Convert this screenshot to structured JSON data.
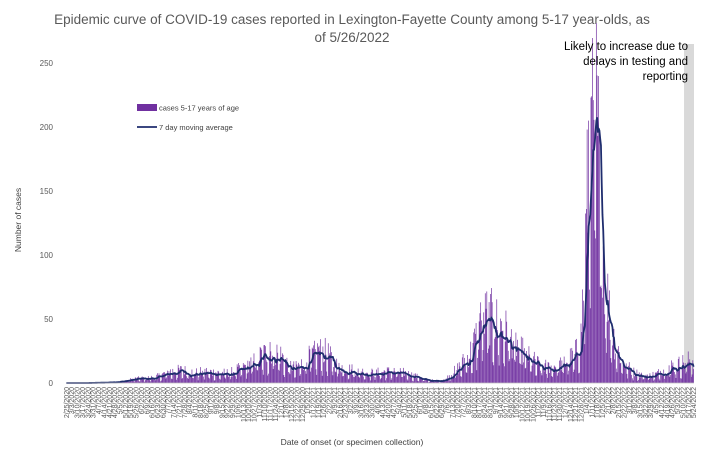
{
  "chart_data": {
    "type": "bar",
    "title_line1": "Epidemic curve of COVID-19 cases reported in Lexington-Fayette County among 5-17 year-olds, as",
    "title_line2": "of 5/26/2022",
    "xlabel": "Date of onset (or specimen collection)",
    "ylabel": "Number of cases",
    "ylim": [
      0,
      250
    ],
    "yticks": [
      0,
      50,
      100,
      150,
      200,
      250
    ],
    "grid": false,
    "legend_position": "upper-left",
    "x_start": "2/25/2020",
    "x_end": "5/24/2022",
    "x_tick_interval_days": 7,
    "series": [
      {
        "name": "cases 5-17 years of age",
        "kind": "bar",
        "color": "#7030A0",
        "shape_points": [
          [
            "2020-02-25",
            0
          ],
          [
            "2020-03-20",
            0
          ],
          [
            "2020-04-15",
            0.3
          ],
          [
            "2020-05-05",
            1
          ],
          [
            "2020-05-25",
            3
          ],
          [
            "2020-06-20",
            4
          ],
          [
            "2020-07-10",
            8
          ],
          [
            "2020-07-25",
            9
          ],
          [
            "2020-08-10",
            7
          ],
          [
            "2020-08-25",
            8
          ],
          [
            "2020-09-10",
            7
          ],
          [
            "2020-09-25",
            7
          ],
          [
            "2020-10-10",
            10
          ],
          [
            "2020-10-25",
            14
          ],
          [
            "2020-11-05",
            19
          ],
          [
            "2020-11-20",
            22
          ],
          [
            "2020-11-30",
            20
          ],
          [
            "2020-12-10",
            13
          ],
          [
            "2020-12-20",
            10
          ],
          [
            "2021-01-05",
            17
          ],
          [
            "2021-01-20",
            22
          ],
          [
            "2021-01-30",
            21
          ],
          [
            "2021-02-10",
            13
          ],
          [
            "2021-02-25",
            10
          ],
          [
            "2021-03-15",
            8
          ],
          [
            "2021-03-30",
            7
          ],
          [
            "2021-04-20",
            8
          ],
          [
            "2021-05-05",
            8
          ],
          [
            "2021-05-25",
            5
          ],
          [
            "2021-06-10",
            2
          ],
          [
            "2021-06-25",
            1.5
          ],
          [
            "2021-07-05",
            3
          ],
          [
            "2021-07-20",
            10
          ],
          [
            "2021-08-05",
            20
          ],
          [
            "2021-08-15",
            34
          ],
          [
            "2021-08-25",
            46
          ],
          [
            "2021-09-05",
            44
          ],
          [
            "2021-09-20",
            36
          ],
          [
            "2021-10-05",
            26
          ],
          [
            "2021-10-20",
            18
          ],
          [
            "2021-11-05",
            12
          ],
          [
            "2021-11-20",
            11
          ],
          [
            "2021-12-05",
            14
          ],
          [
            "2021-12-20",
            19
          ],
          [
            "2021-12-28",
            32
          ],
          [
            "2022-01-03",
            95
          ],
          [
            "2022-01-08",
            165
          ],
          [
            "2022-01-12",
            196
          ],
          [
            "2022-01-16",
            192
          ],
          [
            "2022-01-21",
            145
          ],
          [
            "2022-01-27",
            85
          ],
          [
            "2022-02-03",
            48
          ],
          [
            "2022-02-10",
            28
          ],
          [
            "2022-02-20",
            15
          ],
          [
            "2022-03-05",
            8
          ],
          [
            "2022-03-20",
            5
          ],
          [
            "2022-04-05",
            6
          ],
          [
            "2022-04-20",
            11
          ],
          [
            "2022-05-05",
            13
          ],
          [
            "2022-05-15",
            15
          ],
          [
            "2022-05-24",
            16
          ]
        ],
        "peaks": [
          [
            "2022-01-10",
            223
          ],
          [
            "2022-01-11",
            224
          ],
          [
            "2022-01-13",
            221
          ],
          [
            "2022-01-07",
            205
          ],
          [
            "2021-08-19",
            63
          ],
          [
            "2021-08-26",
            58
          ],
          [
            "2020-11-17",
            32
          ],
          [
            "2021-01-19",
            28
          ]
        ]
      },
      {
        "name": "7 day moving average",
        "kind": "line",
        "color": "#1F2D6E"
      }
    ],
    "annotation": {
      "lines": [
        "Likely to increase due to",
        "delays in testing and",
        "reporting"
      ],
      "shaded_from": "2022-05-12",
      "shaded_to": "2022-05-24",
      "shade_color": "#D9D9D9"
    },
    "x_tick_labels": [
      "2/25/2020",
      "3/3/2020",
      "3/10/2020",
      "3/17/2020",
      "3/24/2020",
      "3/31/2020",
      "4/7/2020",
      "4/14/2020",
      "4/21/2020",
      "4/28/2020",
      "5/5/2020",
      "5/12/2020",
      "5/19/2020",
      "5/26/2020",
      "6/2/2020",
      "6/9/2020",
      "6/16/2020",
      "6/23/2020",
      "6/30/2020",
      "7/7/2020",
      "7/14/2020",
      "7/21/2020",
      "7/28/2020",
      "8/4/2020",
      "8/11/2020",
      "8/18/2020",
      "8/25/2020",
      "9/1/2020",
      "9/8/2020",
      "9/15/2020",
      "9/22/2020",
      "9/29/2020",
      "10/6/2020",
      "10/13/2020",
      "10/20/2020",
      "10/27/2020",
      "11/3/2020",
      "11/10/2020",
      "11/17/2020",
      "11/24/2020",
      "12/1/2020",
      "12/8/2020",
      "12/15/2020",
      "12/22/2020",
      "12/29/2020",
      "1/5/2021",
      "1/12/2021",
      "1/19/2021",
      "1/26/2021",
      "2/2/2021",
      "2/9/2021",
      "2/16/2021",
      "2/23/2021",
      "3/2/2021",
      "3/9/2021",
      "3/16/2021",
      "3/23/2021",
      "3/30/2021",
      "4/6/2021",
      "4/13/2021",
      "4/20/2021",
      "4/27/2021",
      "5/4/2021",
      "5/11/2021",
      "5/18/2021",
      "5/25/2021",
      "6/1/2021",
      "6/8/2021",
      "6/15/2021",
      "6/22/2021",
      "6/29/2021",
      "7/6/2021",
      "7/13/2021",
      "7/20/2021",
      "7/27/2021",
      "8/3/2021",
      "8/10/2021",
      "8/17/2021",
      "8/24/2021",
      "8/31/2021",
      "9/7/2021",
      "9/14/2021",
      "9/21/2021",
      "9/28/2021",
      "10/5/2021",
      "10/12/2021",
      "10/19/2021",
      "10/26/2021",
      "11/2/2021",
      "11/9/2021",
      "11/16/2021",
      "11/23/2021",
      "11/30/2021",
      "12/7/2021",
      "12/14/2021",
      "12/21/2021",
      "12/28/2021",
      "1/4/2022",
      "1/11/2022",
      "1/18/2022",
      "1/25/2022",
      "2/1/2022",
      "2/8/2022",
      "2/15/2022",
      "2/22/2022",
      "3/1/2022",
      "3/8/2022",
      "3/15/2022",
      "3/22/2022",
      "3/29/2022",
      "4/5/2022",
      "4/12/2022",
      "4/19/2022",
      "4/26/2022",
      "5/3/2022",
      "5/10/2022",
      "5/17/2022",
      "5/24/2022"
    ]
  }
}
